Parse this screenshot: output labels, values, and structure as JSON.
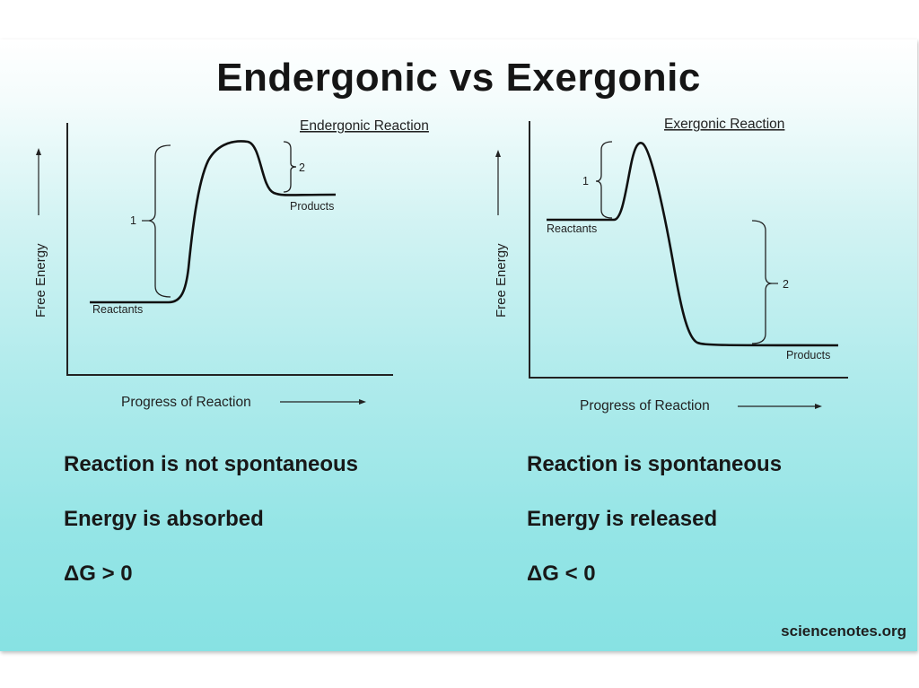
{
  "title": "Endergonic vs Exergonic",
  "left": {
    "heading": "Endergonic Reaction",
    "y_axis_label": "Free Energy",
    "x_axis_label": "Progress of Reaction",
    "reactants_label": "Reactants",
    "products_label": "Products",
    "bracket_1_label": "1",
    "bracket_2_label": "2",
    "statements": [
      "Reaction is not spontaneous",
      "Energy is absorbed",
      "ΔG > 0"
    ]
  },
  "right": {
    "heading": "Exergonic Reaction",
    "y_axis_label": "Free Energy",
    "x_axis_label": "Progress of Reaction",
    "reactants_label": "Reactants",
    "products_label": "Products",
    "bracket_1_label": "1",
    "bracket_2_label": "2",
    "statements": [
      "Reaction is spontaneous",
      "Energy is released",
      "ΔG < 0"
    ]
  },
  "credit": "sciencenotes.org"
}
